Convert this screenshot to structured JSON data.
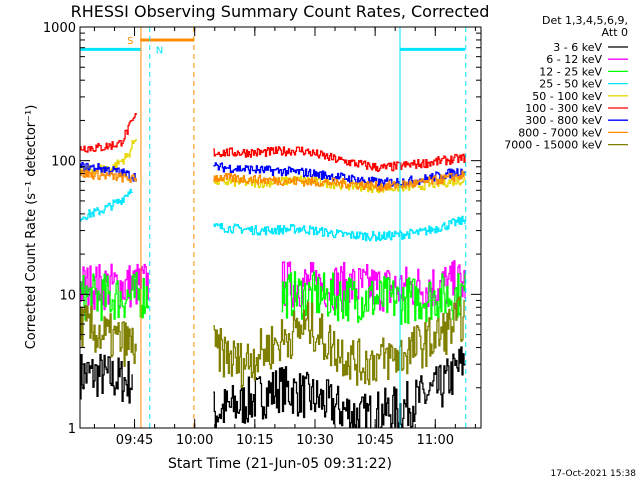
{
  "chart_data": {
    "type": "line",
    "title": "RHESSI Observing Summary Count Rates, Corrected",
    "xlabel": "Start Time (21-Jun-05 09:31:22)",
    "ylabel": "Corrected Count Rate (s⁻¹ detector⁻¹)",
    "yscale": "log",
    "ylim": [
      1,
      1000
    ],
    "xlim": [
      0,
      100
    ],
    "x_unit": "minutes after 09:31:22",
    "y_ticks": [
      {
        "value": 1,
        "label": "1"
      },
      {
        "value": 10,
        "label": "10"
      },
      {
        "value": 100,
        "label": "100"
      },
      {
        "value": 1000,
        "label": "1000"
      }
    ],
    "x_ticks": [
      {
        "value": 13.6,
        "label": "09:45"
      },
      {
        "value": 28.6,
        "label": "10:00"
      },
      {
        "value": 43.6,
        "label": "10:15"
      },
      {
        "value": 58.6,
        "label": "10:30"
      },
      {
        "value": 73.6,
        "label": "10:45"
      },
      {
        "value": 88.6,
        "label": "11:00"
      }
    ],
    "legend_title": [
      "Det 1,3,4,5,6,9,",
      "Att 0"
    ],
    "legend_position": "right",
    "series": [
      {
        "name": "3 - 6 keV",
        "color": "#000000",
        "x": [
          0,
          5,
          10,
          13,
          17,
          33,
          40,
          50,
          60,
          70,
          80,
          90,
          96
        ],
        "values": [
          2.5,
          2.5,
          2.3,
          2.2,
          null,
          1.3,
          1.5,
          2.0,
          1.6,
          1.2,
          1.4,
          2.0,
          3.2
        ]
      },
      {
        "name": "6 - 12 keV",
        "color": "#ff00ff",
        "x": [
          0,
          10,
          17,
          33,
          50,
          65,
          80,
          96
        ],
        "values": [
          11.5,
          11.5,
          12,
          null,
          12,
          11.5,
          11,
          12
        ]
      },
      {
        "name": "12 - 25 keV",
        "color": "#00ff00",
        "x": [
          0,
          10,
          17,
          33,
          50,
          65,
          80,
          96
        ],
        "values": [
          9.5,
          9.5,
          10,
          null,
          10,
          9.5,
          9,
          10
        ]
      },
      {
        "name": "25 - 50 keV",
        "color": "#00e6ff",
        "x": [
          0,
          5,
          10,
          13,
          17,
          33,
          45,
          55,
          65,
          75,
          85,
          96
        ],
        "values": [
          38,
          42,
          50,
          63,
          null,
          32,
          30,
          31,
          28,
          27,
          29,
          36
        ]
      },
      {
        "name": "50 - 100 keV",
        "color": "#e6d800",
        "x": [
          0,
          8,
          12,
          14,
          17,
          33,
          45,
          55,
          65,
          75,
          85,
          96
        ],
        "values": [
          85,
          88,
          110,
          155,
          null,
          70,
          68,
          72,
          66,
          62,
          65,
          72
        ]
      },
      {
        "name": "100 - 300 keV",
        "color": "#ff0000",
        "x": [
          0,
          5,
          10,
          14,
          17,
          33,
          45,
          55,
          65,
          75,
          85,
          96
        ],
        "values": [
          125,
          125,
          135,
          220,
          null,
          115,
          115,
          120,
          100,
          88,
          95,
          105
        ]
      },
      {
        "name": "300 - 800 keV",
        "color": "#0000ff",
        "x": [
          0,
          5,
          10,
          14,
          17,
          33,
          45,
          55,
          65,
          75,
          85,
          96
        ],
        "values": [
          90,
          88,
          82,
          75,
          null,
          90,
          85,
          82,
          75,
          68,
          72,
          85
        ]
      },
      {
        "name": "800 - 7000 keV",
        "color": "#ff8c00",
        "x": [
          0,
          5,
          10,
          14,
          17,
          33,
          45,
          55,
          65,
          75,
          85,
          96
        ],
        "values": [
          80,
          78,
          75,
          72,
          null,
          75,
          72,
          70,
          68,
          64,
          68,
          78
        ]
      },
      {
        "name": "7000 - 15000 keV",
        "color": "#808000",
        "x": [
          0,
          5,
          10,
          14,
          17,
          33,
          40,
          50,
          57,
          63,
          70,
          80,
          90,
          96
        ],
        "values": [
          6.0,
          5.0,
          4.5,
          4.0,
          null,
          4.0,
          3.0,
          4.5,
          6.0,
          4.0,
          3.0,
          3.5,
          5.0,
          7.0
        ]
      }
    ],
    "attenuator_bars": [
      {
        "label": "S",
        "color": "#ff8c00",
        "x0": 15,
        "x1": 28.5,
        "value": 800
      }
    ],
    "night_bars": [
      {
        "color": "#00e6ff",
        "x0": 0,
        "x1": 15.2,
        "value": 680
      },
      {
        "color": "#00e6ff",
        "x0": 79.8,
        "x1": 96,
        "value": 680
      }
    ],
    "markers": [
      {
        "label": "N",
        "color": "#00e6ff",
        "x": 17.4,
        "style": "dashed"
      }
    ],
    "vertical_lines": [
      {
        "color": "#ff8c00",
        "x": 15.2,
        "style": "solid"
      },
      {
        "color": "#00e6ff",
        "x": 17.4,
        "style": "dashed"
      },
      {
        "color": "#ff8c00",
        "x": 28.4,
        "style": "dashed"
      },
      {
        "color": "#00e6ff",
        "x": 79.8,
        "style": "solid"
      },
      {
        "color": "#00e6ff",
        "x": 96.2,
        "style": "dashed"
      }
    ],
    "data_gap": [
      15.2,
      33.0
    ]
  },
  "footer": {
    "timestamp": "17-Oct-2021 15:38"
  }
}
